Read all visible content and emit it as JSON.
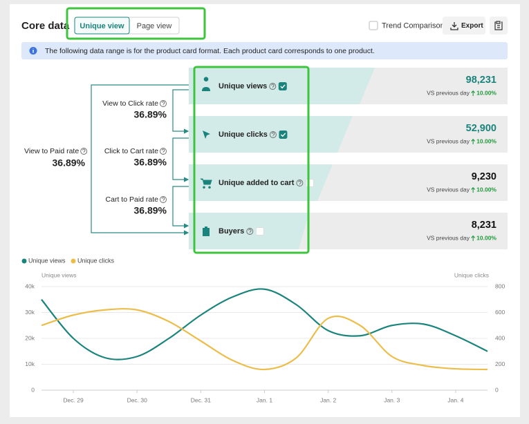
{
  "header": {
    "title": "Core data",
    "tabs": [
      {
        "label": "Unique view",
        "selected": true
      },
      {
        "label": "Page view",
        "selected": false
      }
    ],
    "trend_comparison": {
      "label": "Trend Comparison",
      "checked": false
    },
    "export": "Export"
  },
  "notice": "The following data range is for the product card format. Each product card corresponds to one product.",
  "rates": [
    {
      "label": "View to Paid rate",
      "value": "36.89%"
    },
    {
      "label": "View to Click rate",
      "value": "36.89%"
    },
    {
      "label": "Click to Cart rate",
      "value": "36.89%"
    },
    {
      "label": "Cart to Paid rate",
      "value": "36.89%"
    }
  ],
  "funnel": [
    {
      "label": "Unique views",
      "checked": true,
      "value": "98,231",
      "comparison": "VS previous day",
      "change": "10.00%"
    },
    {
      "label": "Unique clicks",
      "checked": true,
      "value": "52,900",
      "comparison": "VS previous day",
      "change": "10.00%"
    },
    {
      "label": "Unique added to cart",
      "checked": false,
      "value": "9,230",
      "comparison": "VS previous day",
      "change": "10.00%"
    },
    {
      "label": "Buyers",
      "checked": false,
      "value": "8,231",
      "comparison": "VS previous day",
      "change": "10.00%"
    }
  ],
  "chart_data": {
    "type": "line",
    "y_label": "Unique views",
    "y2_label": "Unique clicks",
    "categories": [
      null,
      "Dec. 29",
      null,
      "Dec. 30",
      null,
      "Dec. 31",
      null,
      "Jan. 1",
      null,
      "Jan. 2",
      null,
      "Jan. 3",
      null,
      "Jan. 4",
      null
    ],
    "series": [
      {
        "name": "Unique views",
        "color": "#1a847c",
        "values": [
          35000,
          20000,
          12500,
          13000,
          20000,
          29000,
          36000,
          39000,
          33000,
          23000,
          21000,
          25000,
          25500,
          21000,
          15000
        ]
      },
      {
        "name": "Unique clicks",
        "color": "#ecbd4a",
        "axis": "y2",
        "values": [
          500,
          580,
          620,
          620,
          530,
          380,
          230,
          160,
          250,
          555,
          500,
          260,
          190,
          165,
          160
        ]
      }
    ],
    "ylim": [
      0,
      40000
    ],
    "yticks": [
      0,
      {
        "value": 10000,
        "label": "10k"
      },
      {
        "value": 20000,
        "label": "20k"
      },
      {
        "value": 30000,
        "label": "30k"
      },
      {
        "value": 40000,
        "label": "40k"
      }
    ],
    "y2lim": [
      0,
      800
    ],
    "y2ticks": [
      0,
      200,
      400,
      600,
      800
    ],
    "grid": true,
    "legend": "top-left"
  }
}
